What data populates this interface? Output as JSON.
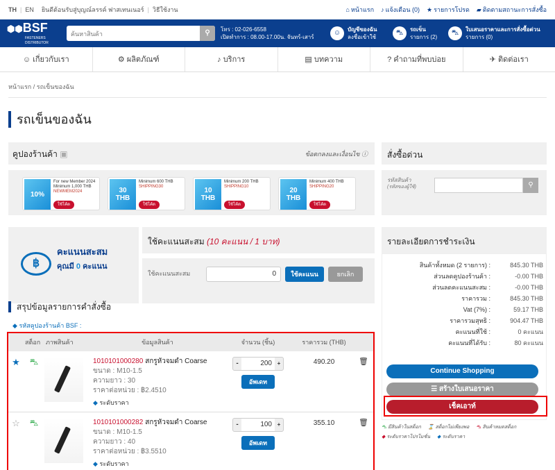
{
  "topbar": {
    "lang_th": "TH",
    "lang_en": "EN",
    "welcome": "ยินดีต้อนรับสู่บุญณ์ลรรค์ ฟาสเทนเนอร์",
    "howto": "วิธีใช้งาน",
    "links": [
      "หน้าแรก",
      "แจ้งเตือน (0)",
      "รายการโปรด",
      "ติดตามสถานะการสั่งซื้อ"
    ]
  },
  "header": {
    "logo": "BSF",
    "logo_sub": "FASTENERS DISTRIBUTOR",
    "search_placeholder": "ค้นหาสินค้า",
    "phone": "โทร : 02-026-6558",
    "hours": "เปิดทำการ : 08.00-17.00น. จันทร์-เสาร์",
    "account_title": "บัญชีของฉัน",
    "account_sub": "ลงชื่อเข้าใช้",
    "cart_title": "รถเข็น",
    "cart_sub": "รายการ (2)",
    "quote_title": "ใบเสนอราคาและการสั่งซื้อด่วน",
    "quote_sub": "รายการ (0)"
  },
  "nav": [
    "เกี่ยวกับเรา",
    "ผลิตภัณฑ์",
    "บริการ",
    "บทความ",
    "คำถามที่พบบ่อย",
    "ติดต่อเรา"
  ],
  "breadcrumb": [
    "หน้าแรก",
    "รถเข็นของฉัน"
  ],
  "page_title": "รถเข็นของฉัน",
  "coupons": {
    "title": "คูปองร้านค้า",
    "terms": "ข้อตกลงและเงื่อนไข",
    "items": [
      {
        "value": "10%",
        "desc": "For new Member 2024 Minimum 1,000 THB",
        "code": "NEWMEM2024",
        "button": "ใช้โค้ด"
      },
      {
        "value": "30 THB",
        "desc": "Minimum 600 THB",
        "code": "SHIPPING30",
        "button": "ใช้โค้ด"
      },
      {
        "value": "10 THB",
        "desc": "Minimum 200 THB",
        "code": "SHIPPING10",
        "button": "ใช้โค้ด"
      },
      {
        "value": "20 THB",
        "desc": "Minimum 400 THB",
        "code": "SHIPPING20",
        "button": "ใช้โค้ด"
      }
    ]
  },
  "points": {
    "title": "คะแนนสะสม",
    "have_prefix": "คุณมี",
    "have_value": "0",
    "have_suffix": "คะแนน",
    "use_title": "ใช้คะแนนสะสม",
    "rate": "(10 คะแนน / 1 บาท)",
    "input_label": "ใช้คะแนนสะสม",
    "input_value": "0",
    "use_button": "ใช้คะแนน",
    "cancel_button": "ยกเลิก"
  },
  "order": {
    "title": "สรุปข้อมูลรายการคำสั่งซื้อ",
    "coupon_link": "รหัสคูปองร้านค้า BSF :",
    "columns": [
      "สต็อก",
      "ภาพสินค้า",
      "ข้อมูลสินค้า",
      "จำนวน (ชิ้น)",
      "ราคารวม (THB)"
    ],
    "items": [
      {
        "code": "1010101000280",
        "name": "สกรูหัวจมดำ Coarse",
        "size": "ขนาด : M10-1.5",
        "length": "ความยาว : 30",
        "unit_price": "ราคาต่อหน่วย : ฿2.4510",
        "tier": "ระดับราคา",
        "qty": "200",
        "total": "490.20",
        "favorite": true,
        "update": "อัพเดท"
      },
      {
        "code": "1010101000282",
        "name": "สกรูหัวจมดำ Coarse",
        "size": "ขนาด : M10-1.5",
        "length": "ความยาว : 40",
        "unit_price": "ราคาต่อหน่วย : ฿3.5510",
        "tier": "ระดับราคา",
        "qty": "100",
        "total": "355.10",
        "favorite": false,
        "update": "อัพเดท"
      }
    ]
  },
  "quick_order": {
    "title": "สั่งซื้อด่วน",
    "label": "รหัสสินค้า",
    "sublabel": "(รหัสของผู้ใช้)"
  },
  "payment": {
    "title": "รายละเอียดการชำระเงิน",
    "rows": [
      {
        "label": "สินค้าทั้งหมด (2 รายการ) :",
        "value": "845.30 THB"
      },
      {
        "label": "ส่วนลดคูปองร้านค้า :",
        "value": "-0.00 THB"
      },
      {
        "label": "ส่วนลดคะแนนสะสม :",
        "value": "-0.00 THB"
      },
      {
        "label": "ราคารวม :",
        "value": "845.30 THB"
      },
      {
        "label": "Vat (7%) :",
        "value": "59.17 THB"
      },
      {
        "label": "ราคารวมสุทธิ :",
        "value": "904.47 THB"
      },
      {
        "label": "คะแนนที่ใช้ :",
        "value": "0 คะแนน"
      },
      {
        "label": "คะแนนที่ได้รับ :",
        "value": "80 คะแนน"
      }
    ],
    "continue": "Continue Shopping",
    "quote": "สร้างใบเสนอราคา",
    "checkout": "เช็คเอาท์"
  },
  "legend": [
    "มีสินค้าในสต็อก",
    "สต็อกไม่เพียงพอ",
    "สินค้าหมดสต็อก",
    "ระดับราคาโปรโมชั่น",
    "ระดับราคา"
  ],
  "colors": {
    "brand": "#0b3f8e",
    "accent": "#c8102e",
    "button_blue": "#0b6fba",
    "stock_green": "#2eaa4a"
  }
}
